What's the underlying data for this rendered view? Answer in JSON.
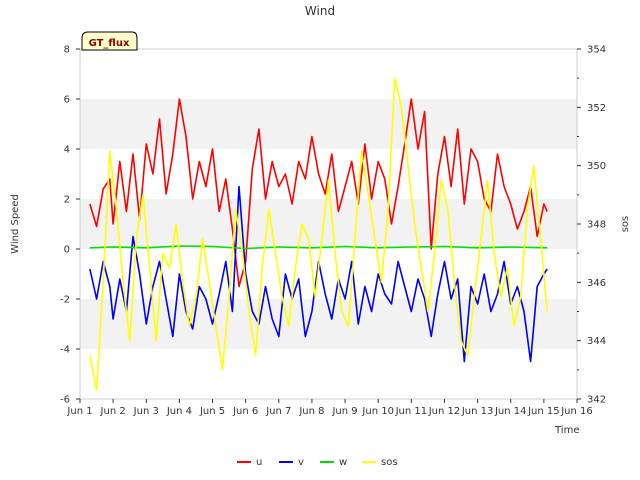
{
  "chart_data": {
    "type": "line",
    "title": "Wind",
    "badge": "GT_flux",
    "xlabel": "Time",
    "ylabel": "Wind Speed",
    "y2label": "sos",
    "xlim": [
      1,
      16
    ],
    "ylim": [
      -6,
      8
    ],
    "y2lim": [
      342,
      354
    ],
    "x_ticks": [
      {
        "value": 1,
        "label": "Jun 1"
      },
      {
        "value": 2,
        "label": "Jun 2"
      },
      {
        "value": 3,
        "label": "Jun 3"
      },
      {
        "value": 4,
        "label": "Jun 4"
      },
      {
        "value": 5,
        "label": "Jun 5"
      },
      {
        "value": 6,
        "label": "Jun 6"
      },
      {
        "value": 7,
        "label": "Jun 7"
      },
      {
        "value": 8,
        "label": "Jun 8"
      },
      {
        "value": 9,
        "label": "Jun 9"
      },
      {
        "value": 10,
        "label": "Jun 10"
      },
      {
        "value": 11,
        "label": "Jun 11"
      },
      {
        "value": 12,
        "label": "Jun 12"
      },
      {
        "value": 13,
        "label": "Jun 13"
      },
      {
        "value": 14,
        "label": "Jun 14"
      },
      {
        "value": 15,
        "label": "Jun 15"
      },
      {
        "value": 16,
        "label": "Jun 16"
      }
    ],
    "y_ticks": [
      {
        "value": -6,
        "label": "-6"
      },
      {
        "value": -4,
        "label": "-4"
      },
      {
        "value": -2,
        "label": "-2"
      },
      {
        "value": 0,
        "label": "0"
      },
      {
        "value": 2,
        "label": "2"
      },
      {
        "value": 4,
        "label": "4"
      },
      {
        "value": 6,
        "label": "6"
      },
      {
        "value": 8,
        "label": "8"
      }
    ],
    "y2_ticks": [
      {
        "value": 342,
        "label": "342"
      },
      {
        "value": 344,
        "label": "344"
      },
      {
        "value": 346,
        "label": "346"
      },
      {
        "value": 348,
        "label": "348"
      },
      {
        "value": 350,
        "label": "350"
      },
      {
        "value": 352,
        "label": "352"
      },
      {
        "value": 354,
        "label": "354"
      }
    ],
    "bands": [
      [
        -4,
        -2
      ],
      [
        0,
        2
      ],
      [
        4,
        6
      ]
    ],
    "legend_position": "bottom-center",
    "series": [
      {
        "name": "u",
        "label": "u",
        "color": "#ff0000",
        "axis": "left",
        "x": [
          1.3,
          1.5,
          1.7,
          1.9,
          2.0,
          2.2,
          2.4,
          2.6,
          2.8,
          3.0,
          3.2,
          3.4,
          3.6,
          3.8,
          4.0,
          4.2,
          4.4,
          4.6,
          4.8,
          5.0,
          5.2,
          5.4,
          5.6,
          5.8,
          6.0,
          6.2,
          6.4,
          6.6,
          6.8,
          7.0,
          7.2,
          7.4,
          7.6,
          7.8,
          8.0,
          8.2,
          8.4,
          8.6,
          8.8,
          9.0,
          9.2,
          9.4,
          9.6,
          9.8,
          10.0,
          10.2,
          10.4,
          10.6,
          10.8,
          11.0,
          11.2,
          11.4,
          11.6,
          11.8,
          12.0,
          12.2,
          12.4,
          12.6,
          12.8,
          13.0,
          13.2,
          13.4,
          13.6,
          13.8,
          14.0,
          14.2,
          14.4,
          14.6,
          14.8,
          15.0,
          15.1
        ],
        "values": [
          1.8,
          0.9,
          2.4,
          2.8,
          1.0,
          3.5,
          1.5,
          3.8,
          1.2,
          4.2,
          3.0,
          5.2,
          2.2,
          3.8,
          6.0,
          4.5,
          2.0,
          3.5,
          2.5,
          4.0,
          1.5,
          2.8,
          0.8,
          -1.5,
          -0.5,
          3.2,
          4.8,
          2.0,
          3.5,
          2.5,
          3.0,
          1.8,
          3.5,
          2.8,
          4.5,
          3.0,
          2.2,
          3.8,
          1.5,
          2.5,
          3.5,
          1.8,
          4.2,
          2.0,
          3.5,
          2.8,
          1.0,
          2.5,
          4.2,
          6.0,
          4.0,
          5.5,
          0.0,
          3.0,
          4.5,
          2.5,
          4.8,
          1.8,
          4.0,
          3.5,
          2.0,
          1.5,
          3.8,
          2.5,
          1.8,
          0.8,
          1.5,
          2.5,
          0.5,
          1.8,
          1.5
        ]
      },
      {
        "name": "v",
        "label": "v",
        "color": "#0000ff",
        "axis": "left",
        "x": [
          1.3,
          1.5,
          1.7,
          1.9,
          2.0,
          2.2,
          2.4,
          2.6,
          2.8,
          3.0,
          3.2,
          3.4,
          3.6,
          3.8,
          4.0,
          4.2,
          4.4,
          4.6,
          4.8,
          5.0,
          5.2,
          5.4,
          5.6,
          5.8,
          6.0,
          6.2,
          6.4,
          6.6,
          6.8,
          7.0,
          7.2,
          7.4,
          7.6,
          7.8,
          8.0,
          8.2,
          8.4,
          8.6,
          8.8,
          9.0,
          9.2,
          9.4,
          9.6,
          9.8,
          10.0,
          10.2,
          10.4,
          10.6,
          10.8,
          11.0,
          11.2,
          11.4,
          11.6,
          11.8,
          12.0,
          12.2,
          12.4,
          12.6,
          12.8,
          13.0,
          13.2,
          13.4,
          13.6,
          13.8,
          14.0,
          14.2,
          14.4,
          14.6,
          14.8,
          15.0,
          15.1
        ],
        "values": [
          -0.8,
          -2.0,
          -0.5,
          -1.5,
          -2.8,
          -1.2,
          -2.5,
          0.5,
          -1.0,
          -3.0,
          -1.5,
          -0.5,
          -2.0,
          -3.5,
          -1.0,
          -2.5,
          -3.2,
          -1.5,
          -2.0,
          -3.0,
          -1.8,
          -0.5,
          -2.5,
          2.5,
          -1.0,
          -2.5,
          -3.0,
          -1.5,
          -2.8,
          -3.5,
          -1.0,
          -2.0,
          -1.2,
          -3.5,
          -2.5,
          -0.5,
          -1.8,
          -2.8,
          -1.2,
          -2.0,
          -0.5,
          -3.0,
          -1.5,
          -2.5,
          -1.0,
          -1.8,
          -2.2,
          -0.5,
          -1.5,
          -2.5,
          -1.2,
          -2.0,
          -3.5,
          -1.8,
          -0.5,
          -2.0,
          -1.2,
          -4.5,
          -1.5,
          -2.2,
          -1.0,
          -2.5,
          -1.8,
          -0.5,
          -2.2,
          -1.5,
          -2.5,
          -4.5,
          -1.5,
          -1.0,
          -0.8
        ]
      },
      {
        "name": "w",
        "label": "w",
        "color": "#00e000",
        "axis": "left",
        "x": [
          1.3,
          2.0,
          3.0,
          4.0,
          5.0,
          6.0,
          7.0,
          8.0,
          9.0,
          10.0,
          11.0,
          12.0,
          13.0,
          14.0,
          15.1
        ],
        "values": [
          0.05,
          0.08,
          0.05,
          0.12,
          0.1,
          0.02,
          0.08,
          0.05,
          0.1,
          0.05,
          0.08,
          0.1,
          0.05,
          0.08,
          0.05
        ]
      },
      {
        "name": "sos",
        "label": "sos",
        "color": "#ffff00",
        "axis": "right",
        "x": [
          1.3,
          1.5,
          1.7,
          1.9,
          2.1,
          2.3,
          2.5,
          2.7,
          2.9,
          3.1,
          3.3,
          3.5,
          3.7,
          3.9,
          4.1,
          4.3,
          4.5,
          4.7,
          4.9,
          5.1,
          5.3,
          5.5,
          5.7,
          5.9,
          6.1,
          6.3,
          6.5,
          6.7,
          6.9,
          7.1,
          7.3,
          7.5,
          7.7,
          7.9,
          8.1,
          8.3,
          8.5,
          8.7,
          8.9,
          9.1,
          9.3,
          9.5,
          9.7,
          9.9,
          10.1,
          10.3,
          10.5,
          10.7,
          10.9,
          11.1,
          11.3,
          11.5,
          11.7,
          11.9,
          12.1,
          12.3,
          12.5,
          12.7,
          12.9,
          13.1,
          13.3,
          13.5,
          13.7,
          13.9,
          14.1,
          14.3,
          14.5,
          14.7,
          14.9,
          15.1
        ],
        "values": [
          343.5,
          342.3,
          346.0,
          350.5,
          348.5,
          346.0,
          344.0,
          347.5,
          349.0,
          346.5,
          344.0,
          347.0,
          346.5,
          348.0,
          346.0,
          344.5,
          345.5,
          347.5,
          346.0,
          344.5,
          343.0,
          345.5,
          348.5,
          347.0,
          345.0,
          343.5,
          346.5,
          348.5,
          347.0,
          345.5,
          344.5,
          346.5,
          348.0,
          347.5,
          345.5,
          347.5,
          349.5,
          347.0,
          345.0,
          344.5,
          347.5,
          350.5,
          349.0,
          347.5,
          346.0,
          348.5,
          353.0,
          352.0,
          350.0,
          348.0,
          346.5,
          345.0,
          347.0,
          349.5,
          348.5,
          346.0,
          344.0,
          343.5,
          345.5,
          347.5,
          349.5,
          347.0,
          345.5,
          346.5,
          344.5,
          345.5,
          348.5,
          350.0,
          347.5,
          345.0
        ]
      }
    ]
  }
}
